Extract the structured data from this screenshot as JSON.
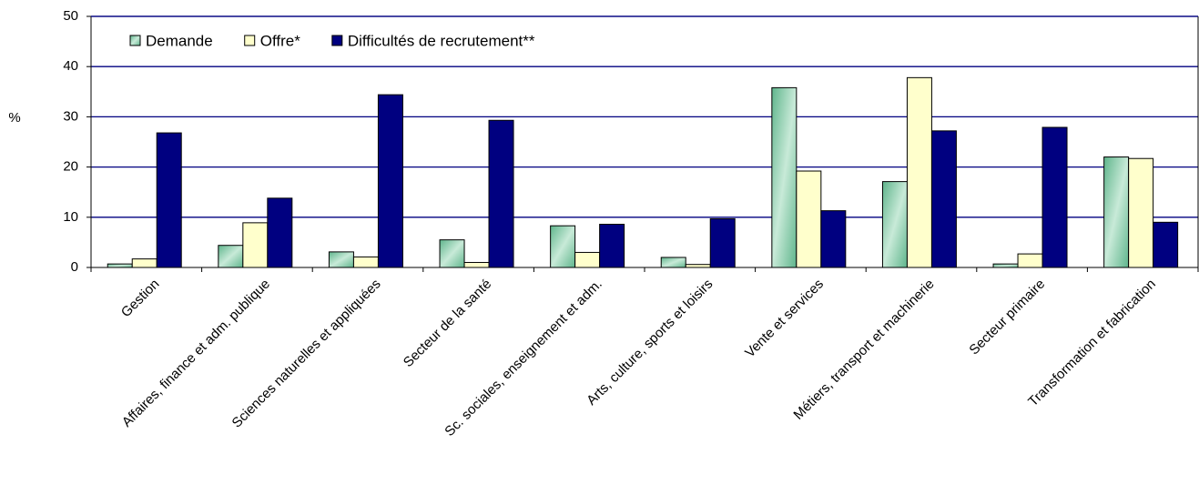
{
  "chart_data": {
    "type": "bar",
    "y_label": "%",
    "categories": [
      "Gestion",
      "Affaires, finance et adm. publique",
      "Sciences naturelles et appliquées",
      "Secteur de la santé",
      "Sc. sociales, enseignement et adm.",
      "Arts, culture, sports et loisirs",
      "Vente et services",
      "Métiers, transport et machinerie",
      "Secteur primaire",
      "Transformation et fabrication"
    ],
    "series": [
      {
        "name": "Demande",
        "color": "#5fb58c",
        "values": [
          0.7,
          4.4,
          3.1,
          5.5,
          8.3,
          2.0,
          35.8,
          17.1,
          0.7,
          22.0
        ]
      },
      {
        "name": "Offre*",
        "color": "#ffffcc",
        "values": [
          1.7,
          8.9,
          2.1,
          1.0,
          3.0,
          0.6,
          19.2,
          37.8,
          2.7,
          21.7
        ]
      },
      {
        "name": "Difficultés de recrutement**",
        "color": "#000080",
        "values": [
          26.8,
          13.8,
          34.4,
          29.3,
          8.6,
          9.7,
          11.3,
          27.2,
          27.9,
          9.0
        ]
      }
    ],
    "ylim": [
      0,
      50
    ],
    "yticks": [
      0,
      10,
      20,
      30,
      40,
      50
    ],
    "grid": true,
    "grid_color": "#000080",
    "legend": "upper left"
  }
}
